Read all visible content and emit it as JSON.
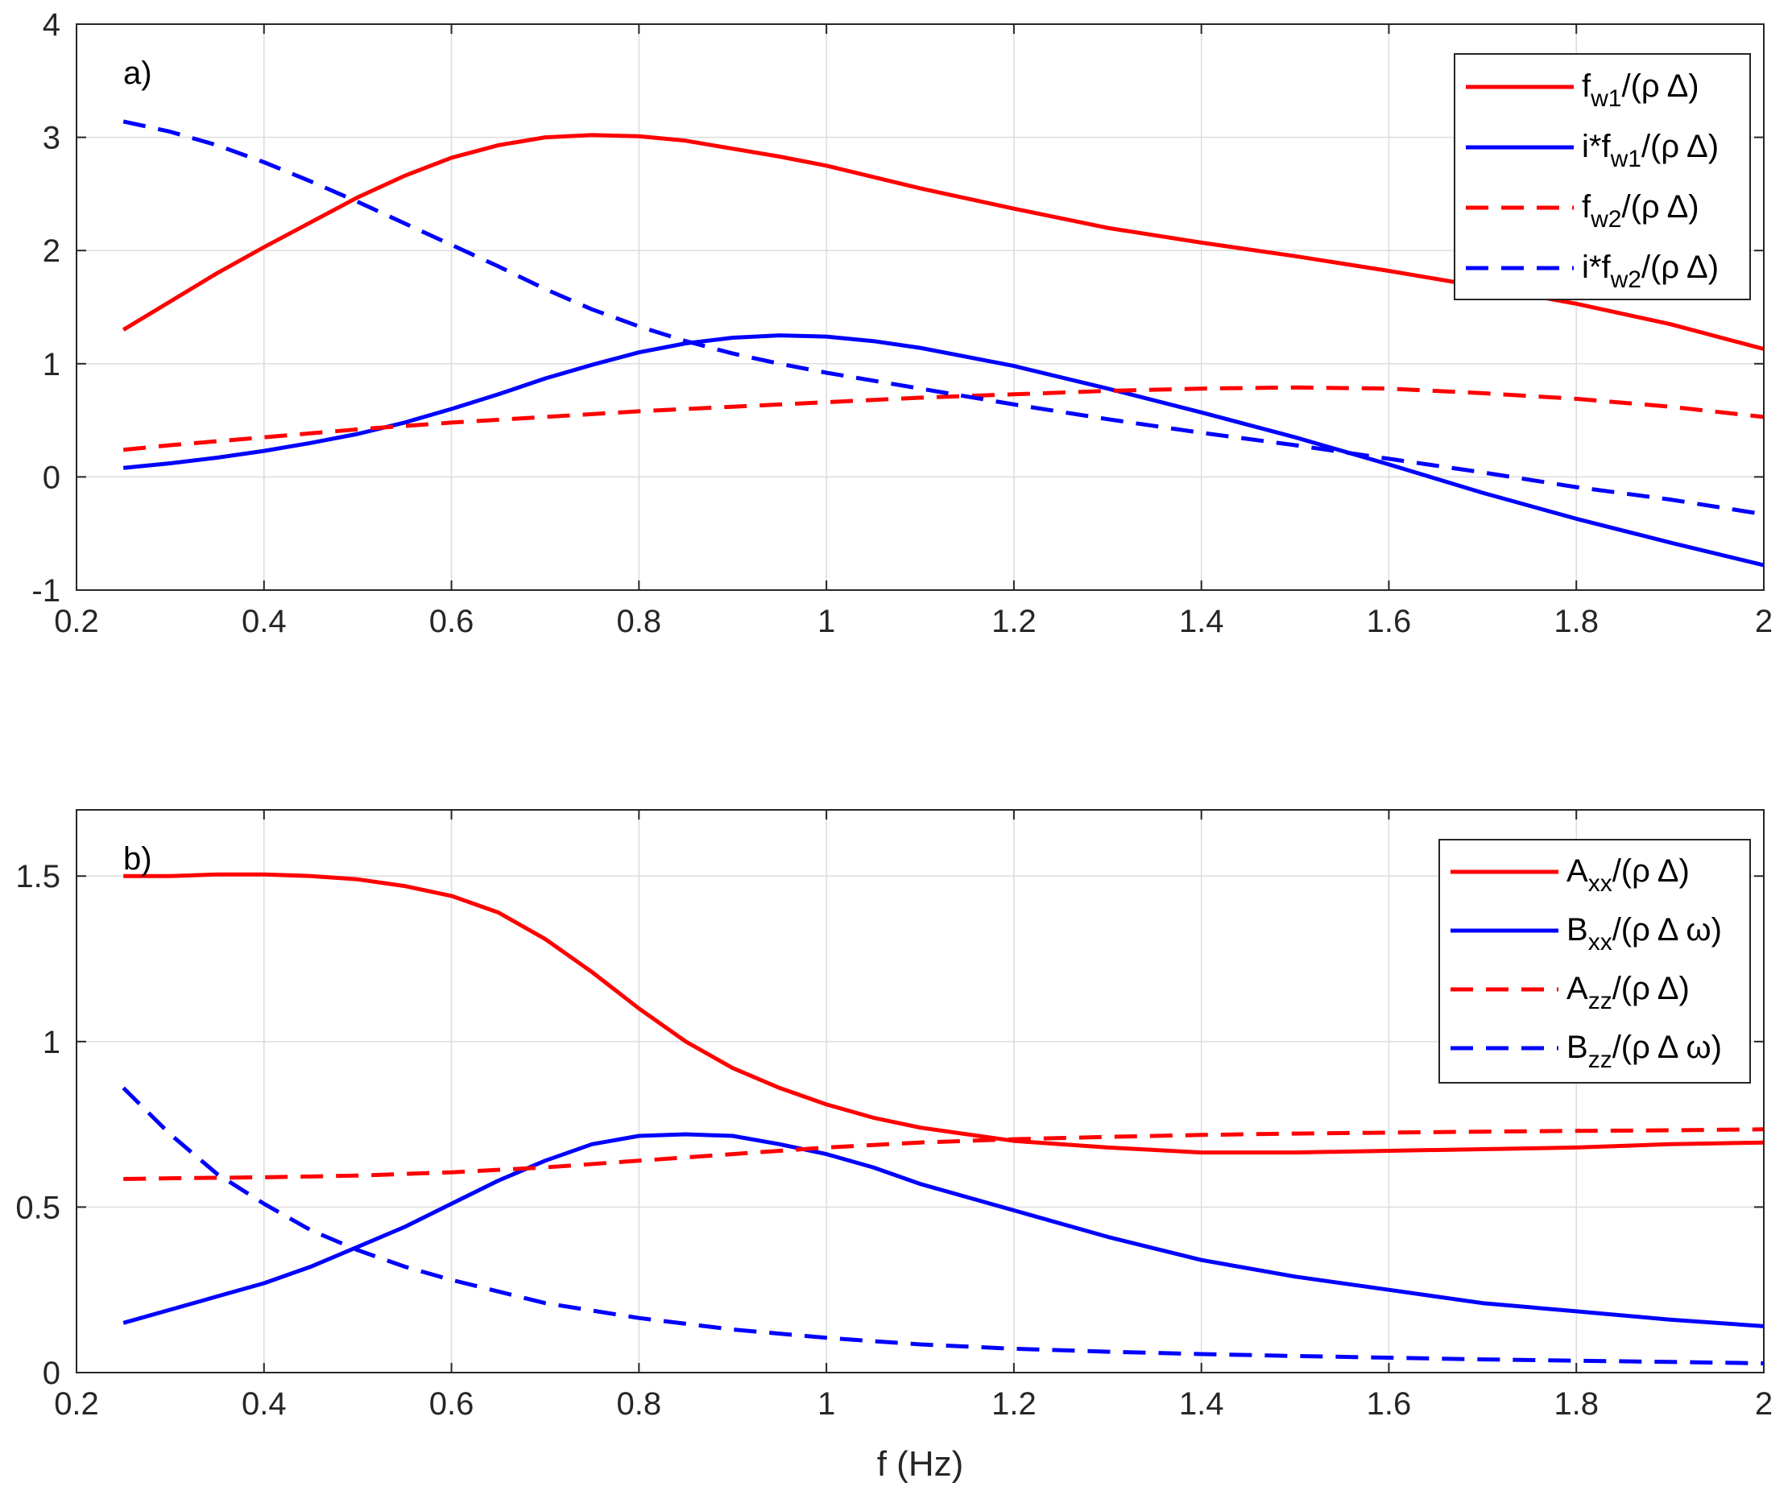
{
  "chart_data": [
    {
      "type": "line",
      "panel_label": "a)",
      "xlabel": "",
      "ylabel": "",
      "xlim": [
        0.2,
        2
      ],
      "ylim": [
        -1,
        4
      ],
      "xticks": [
        0.2,
        0.4,
        0.6,
        0.8,
        1,
        1.2,
        1.4,
        1.6,
        1.8,
        2
      ],
      "xtick_labels": [
        "0.2",
        "0.4",
        "0.6",
        "0.8",
        "1",
        "1.2",
        "1.4",
        "1.6",
        "1.8",
        "2"
      ],
      "yticks": [
        -1,
        0,
        1,
        2,
        3,
        4
      ],
      "ytick_labels": [
        "-1",
        "0",
        "1",
        "2",
        "3",
        "4"
      ],
      "grid": true,
      "legend_position": "top-right",
      "series": [
        {
          "name": "fw1/(ρ Δ)",
          "legend": {
            "base": "f",
            "sub": "w1",
            "suffix": "/(ρ Δ)"
          },
          "color": "#ff0000",
          "dash": "solid",
          "x": [
            0.25,
            0.3,
            0.35,
            0.4,
            0.45,
            0.5,
            0.55,
            0.6,
            0.65,
            0.7,
            0.75,
            0.8,
            0.85,
            0.9,
            0.95,
            1.0,
            1.1,
            1.2,
            1.3,
            1.4,
            1.5,
            1.6,
            1.7,
            1.8,
            1.9,
            2.0
          ],
          "y": [
            1.3,
            1.55,
            1.8,
            2.03,
            2.25,
            2.47,
            2.66,
            2.82,
            2.93,
            3.0,
            3.02,
            3.01,
            2.97,
            2.9,
            2.83,
            2.75,
            2.55,
            2.37,
            2.2,
            2.07,
            1.95,
            1.82,
            1.68,
            1.53,
            1.35,
            1.13
          ]
        },
        {
          "name": "i*fw1/(ρ Δ)",
          "legend": {
            "base": "i*f",
            "sub": "w1",
            "suffix": "/(ρ Δ)"
          },
          "color": "#0000ff",
          "dash": "solid",
          "x": [
            0.25,
            0.3,
            0.35,
            0.4,
            0.45,
            0.5,
            0.55,
            0.6,
            0.65,
            0.7,
            0.75,
            0.8,
            0.85,
            0.9,
            0.95,
            1.0,
            1.05,
            1.1,
            1.2,
            1.3,
            1.4,
            1.5,
            1.6,
            1.7,
            1.8,
            1.9,
            2.0
          ],
          "y": [
            0.08,
            0.12,
            0.17,
            0.23,
            0.3,
            0.38,
            0.48,
            0.6,
            0.73,
            0.87,
            0.99,
            1.1,
            1.18,
            1.23,
            1.25,
            1.24,
            1.2,
            1.14,
            0.98,
            0.78,
            0.57,
            0.35,
            0.11,
            -0.14,
            -0.37,
            -0.58,
            -0.78
          ]
        },
        {
          "name": "fw2/(ρ Δ)",
          "legend": {
            "base": "f",
            "sub": "w2",
            "suffix": "/(ρ Δ)"
          },
          "color": "#ff0000",
          "dash": "dashed",
          "x": [
            0.25,
            0.3,
            0.4,
            0.5,
            0.6,
            0.7,
            0.8,
            0.9,
            1.0,
            1.1,
            1.2,
            1.3,
            1.4,
            1.5,
            1.6,
            1.7,
            1.8,
            1.9,
            2.0
          ],
          "y": [
            0.24,
            0.28,
            0.35,
            0.42,
            0.48,
            0.53,
            0.58,
            0.62,
            0.66,
            0.7,
            0.73,
            0.76,
            0.78,
            0.79,
            0.78,
            0.74,
            0.69,
            0.62,
            0.53
          ]
        },
        {
          "name": "i*fw2/(ρ Δ)",
          "legend": {
            "base": "i*f",
            "sub": "w2",
            "suffix": "/(ρ Δ)"
          },
          "color": "#0000ff",
          "dash": "dashed",
          "x": [
            0.25,
            0.3,
            0.35,
            0.4,
            0.45,
            0.5,
            0.55,
            0.6,
            0.65,
            0.7,
            0.75,
            0.8,
            0.85,
            0.9,
            0.95,
            1.0,
            1.1,
            1.2,
            1.3,
            1.4,
            1.5,
            1.6,
            1.7,
            1.8,
            1.9,
            2.0
          ],
          "y": [
            3.14,
            3.05,
            2.93,
            2.78,
            2.61,
            2.43,
            2.24,
            2.05,
            1.86,
            1.66,
            1.48,
            1.33,
            1.2,
            1.09,
            1.0,
            0.92,
            0.78,
            0.64,
            0.51,
            0.39,
            0.28,
            0.16,
            0.04,
            -0.09,
            -0.2,
            -0.33
          ]
        }
      ]
    },
    {
      "type": "line",
      "panel_label": "b)",
      "xlabel": "f (Hz)",
      "ylabel": "",
      "xlim": [
        0.2,
        2
      ],
      "ylim": [
        0,
        1.7
      ],
      "xticks": [
        0.2,
        0.4,
        0.6,
        0.8,
        1,
        1.2,
        1.4,
        1.6,
        1.8,
        2
      ],
      "xtick_labels": [
        "0.2",
        "0.4",
        "0.6",
        "0.8",
        "1",
        "1.2",
        "1.4",
        "1.6",
        "1.8",
        "2"
      ],
      "yticks": [
        0,
        0.5,
        1,
        1.5
      ],
      "ytick_labels": [
        "0",
        "0.5",
        "1",
        "1.5"
      ],
      "grid": true,
      "legend_position": "top-right",
      "series": [
        {
          "name": "Axx/(ρ Δ)",
          "legend": {
            "base": "A",
            "sub": "xx",
            "suffix": "/(ρ Δ)"
          },
          "color": "#ff0000",
          "dash": "solid",
          "x": [
            0.25,
            0.3,
            0.35,
            0.4,
            0.45,
            0.5,
            0.55,
            0.6,
            0.65,
            0.7,
            0.75,
            0.8,
            0.85,
            0.9,
            0.95,
            1.0,
            1.05,
            1.1,
            1.15,
            1.2,
            1.3,
            1.4,
            1.5,
            1.6,
            1.7,
            1.8,
            1.9,
            2.0
          ],
          "y": [
            1.5,
            1.5,
            1.505,
            1.505,
            1.5,
            1.49,
            1.47,
            1.44,
            1.39,
            1.31,
            1.21,
            1.1,
            1.0,
            0.92,
            0.86,
            0.81,
            0.77,
            0.74,
            0.72,
            0.7,
            0.68,
            0.665,
            0.665,
            0.67,
            0.675,
            0.68,
            0.69,
            0.695
          ]
        },
        {
          "name": "Bxx/(ρ Δ ω)",
          "legend": {
            "base": "B",
            "sub": "xx",
            "suffix": "/(ρ Δ ω)"
          },
          "color": "#0000ff",
          "dash": "solid",
          "x": [
            0.25,
            0.3,
            0.35,
            0.4,
            0.45,
            0.5,
            0.55,
            0.6,
            0.65,
            0.7,
            0.75,
            0.8,
            0.85,
            0.9,
            0.95,
            1.0,
            1.05,
            1.1,
            1.2,
            1.3,
            1.4,
            1.5,
            1.6,
            1.7,
            1.8,
            1.9,
            2.0
          ],
          "y": [
            0.15,
            0.19,
            0.23,
            0.27,
            0.32,
            0.38,
            0.44,
            0.51,
            0.58,
            0.64,
            0.69,
            0.715,
            0.72,
            0.715,
            0.69,
            0.66,
            0.62,
            0.57,
            0.49,
            0.41,
            0.34,
            0.29,
            0.25,
            0.21,
            0.185,
            0.16,
            0.14
          ]
        },
        {
          "name": "Azz/(ρ Δ)",
          "legend": {
            "base": "A",
            "sub": "zz",
            "suffix": "/(ρ Δ)"
          },
          "color": "#ff0000",
          "dash": "dashed",
          "x": [
            0.25,
            0.3,
            0.4,
            0.5,
            0.6,
            0.7,
            0.8,
            0.9,
            1.0,
            1.1,
            1.2,
            1.3,
            1.4,
            1.5,
            1.6,
            1.7,
            1.8,
            1.9,
            2.0
          ],
          "y": [
            0.585,
            0.587,
            0.59,
            0.595,
            0.605,
            0.62,
            0.64,
            0.66,
            0.68,
            0.695,
            0.705,
            0.712,
            0.718,
            0.722,
            0.725,
            0.728,
            0.73,
            0.732,
            0.735
          ]
        },
        {
          "name": "Bzz/(ρ Δ ω)",
          "legend": {
            "base": "B",
            "sub": "zz",
            "suffix": "/(ρ Δ ω)"
          },
          "color": "#0000ff",
          "dash": "dashed",
          "x": [
            0.25,
            0.3,
            0.35,
            0.4,
            0.45,
            0.5,
            0.55,
            0.6,
            0.7,
            0.8,
            0.9,
            1.0,
            1.1,
            1.2,
            1.3,
            1.4,
            1.5,
            1.6,
            1.7,
            1.8,
            1.9,
            2.0
          ],
          "y": [
            0.86,
            0.72,
            0.6,
            0.51,
            0.43,
            0.37,
            0.32,
            0.28,
            0.21,
            0.165,
            0.13,
            0.105,
            0.085,
            0.072,
            0.063,
            0.056,
            0.05,
            0.045,
            0.04,
            0.036,
            0.032,
            0.028
          ]
        }
      ]
    }
  ]
}
